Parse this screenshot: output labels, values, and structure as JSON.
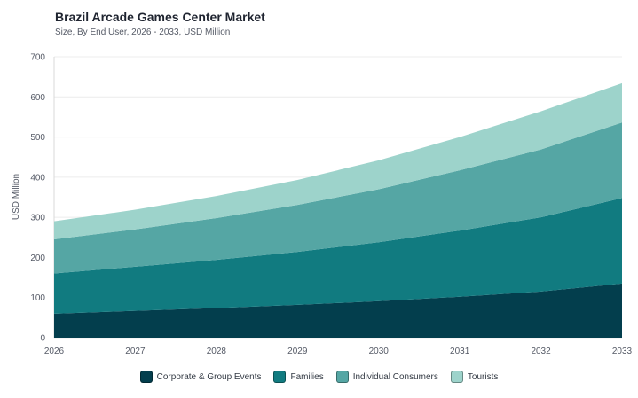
{
  "title": "Brazil Arcade Games Center Market",
  "subtitle": "Size, By End User, 2026 - 2033, USD Million",
  "chart_data": {
    "type": "area",
    "stacked": true,
    "x": [
      "2026",
      "2027",
      "2028",
      "2029",
      "2030",
      "2031",
      "2032",
      "2033"
    ],
    "ylabel": "USD Million",
    "xlabel": "",
    "ylim": [
      0,
      700
    ],
    "yticks": [
      "0",
      "100",
      "200",
      "300",
      "400",
      "500",
      "600",
      "700"
    ],
    "grid": true,
    "legend_position": "bottom",
    "series": [
      {
        "name": "Corporate & Group Events",
        "color": "#033e4d",
        "values": [
          60,
          67,
          74,
          82,
          91,
          102,
          115,
          135
        ]
      },
      {
        "name": "Families",
        "color": "#117b80",
        "values": [
          100,
          110,
          120,
          132,
          147,
          165,
          185,
          213
        ]
      },
      {
        "name": "Individual Consumers",
        "color": "#55a6a4",
        "values": [
          85,
          93,
          104,
          117,
          132,
          150,
          169,
          188
        ]
      },
      {
        "name": "Tourists",
        "color": "#9dd3cb",
        "values": [
          45,
          49,
          55,
          62,
          72,
          83,
          95,
          98
        ]
      }
    ]
  }
}
